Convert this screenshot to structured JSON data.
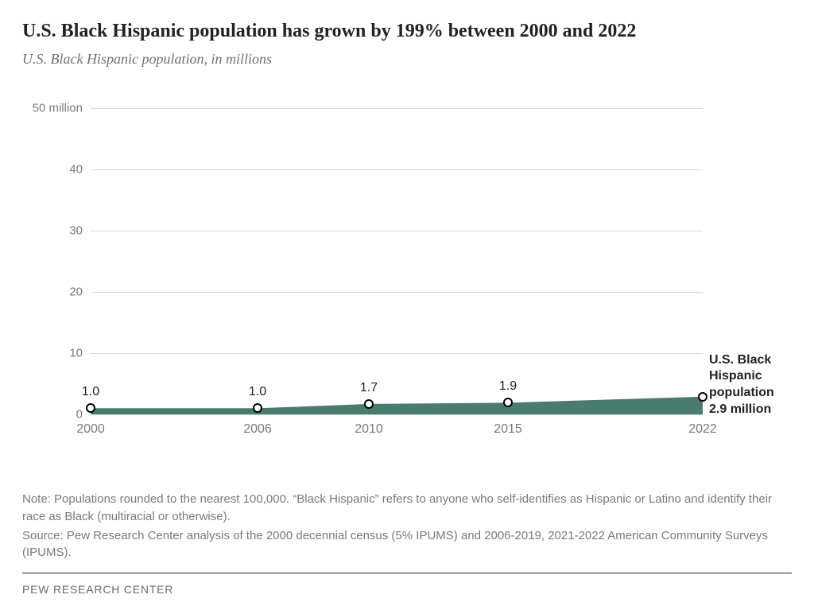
{
  "title": "U.S. Black Hispanic population has grown by 199% between 2000 and 2022",
  "subtitle": "U.S. Black Hispanic population, in millions",
  "chart": {
    "type": "area",
    "x_domain": [
      2000,
      2022
    ],
    "y_domain": [
      0,
      52
    ],
    "y_ticks": [
      0,
      10,
      20,
      30,
      40,
      50
    ],
    "y_tick_labels": [
      "0",
      "10",
      "20",
      "30",
      "40",
      "50 million"
    ],
    "x_ticks": [
      2000,
      2006,
      2010,
      2015,
      2022
    ],
    "x_tick_labels": [
      "2000",
      "2006",
      "2010",
      "2015",
      "2022"
    ],
    "series": {
      "color": "#4a7b6f",
      "points": [
        {
          "x": 2000,
          "y": 1.0,
          "label": "1.0"
        },
        {
          "x": 2006,
          "y": 1.0,
          "label": "1.0"
        },
        {
          "x": 2010,
          "y": 1.7,
          "label": "1.7"
        },
        {
          "x": 2015,
          "y": 1.9,
          "label": "1.9"
        },
        {
          "x": 2022,
          "y": 2.9,
          "label": ""
        }
      ],
      "marker_border_color": "#000000",
      "marker_fill_color": "#ffffff",
      "marker_radius": 6,
      "marker_border_width": 2
    },
    "end_label": {
      "line1": "U.S. Black",
      "line2": "Hispanic",
      "line3": "population",
      "line4": "2.9 million"
    },
    "gridline_color": "#d9d9d9",
    "background_color": "#ffffff",
    "label_font_size": 16,
    "tick_font_color": "#7a7a7a",
    "tick_font_size": 15,
    "point_label_color": "#222222"
  },
  "note": "Note: Populations rounded to the nearest 100,000. “Black Hispanic” refers to anyone who self-identifies as Hispanic or Latino and identify their race as Black (multiracial or otherwise).",
  "source": "Source: Pew Research Center analysis of the 2000 decennial census (5% IPUMS) and 2006-2019, 2021-2022 American Community Surveys (IPUMS).",
  "attribution": "PEW RESEARCH CENTER"
}
